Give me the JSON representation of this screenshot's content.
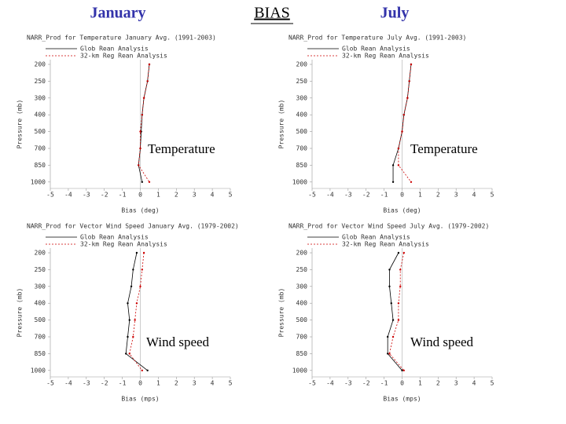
{
  "slide_titles": [
    "January",
    "BIAS",
    "July"
  ],
  "chart_data": [
    {
      "type": "line",
      "orientation": "horizontal",
      "title": "NARR_Prod for Temperature January Avg. (1991-2003)",
      "xlabel": "Bias (deg)",
      "ylabel": "Pressure (mb)",
      "annotation": "Temperature",
      "categories": [
        "200",
        "250",
        "300",
        "400",
        "500",
        "700",
        "850",
        "1000"
      ],
      "series": [
        {
          "name": "Glob Rean Analysis",
          "color": "#000000",
          "values": [
            0.5,
            0.4,
            0.2,
            0.1,
            0.05,
            0,
            -0.1,
            0.1
          ]
        },
        {
          "name": "32-km Reg Rean Analysis",
          "color": "#cc0000",
          "values": [
            0.5,
            0.4,
            0.2,
            0.1,
            0,
            0,
            -0.1,
            0.5
          ]
        }
      ],
      "xlim": [
        -5,
        5
      ],
      "xticks": [
        -5,
        -4,
        -3,
        -2,
        -1,
        0,
        1,
        2,
        3,
        4,
        5
      ]
    },
    {
      "type": "line",
      "orientation": "horizontal",
      "title": "NARR_Prod for Temperature July Avg. (1991-2003)",
      "xlabel": "Bias (deg)",
      "ylabel": "Pressure (mb)",
      "annotation": "Temperature",
      "categories": [
        "200",
        "250",
        "300",
        "400",
        "500",
        "700",
        "850",
        "1000"
      ],
      "series": [
        {
          "name": "Glob Rean Analysis",
          "color": "#000000",
          "values": [
            0.5,
            0.4,
            0.3,
            0.1,
            0,
            -0.2,
            -0.5,
            -0.5
          ]
        },
        {
          "name": "32-km Reg Rean Analysis",
          "color": "#cc0000",
          "values": [
            0.5,
            0.4,
            0.3,
            0.1,
            0,
            -0.2,
            -0.2,
            0.5
          ]
        }
      ],
      "xlim": [
        -5,
        5
      ],
      "xticks": [
        -5,
        -4,
        -3,
        -2,
        -1,
        0,
        1,
        2,
        3,
        4,
        5
      ]
    },
    {
      "type": "line",
      "orientation": "horizontal",
      "title": "NARR_Prod for Vector Wind Speed January Avg. (1979-2002)",
      "xlabel": "Bias (mps)",
      "ylabel": "Pressure (mb)",
      "annotation": "Wind speed",
      "categories": [
        "200",
        "250",
        "300",
        "400",
        "500",
        "700",
        "850",
        "1000"
      ],
      "series": [
        {
          "name": "Glob Rean Analysis",
          "color": "#000000",
          "values": [
            -0.2,
            -0.4,
            -0.5,
            -0.7,
            -0.6,
            -0.7,
            -0.8,
            0.4
          ]
        },
        {
          "name": "32-km Reg Rean Analysis",
          "color": "#cc0000",
          "values": [
            0.2,
            0.1,
            0,
            -0.2,
            -0.3,
            -0.4,
            -0.6,
            0.1
          ]
        }
      ],
      "xlim": [
        -5,
        5
      ],
      "xticks": [
        -5,
        -4,
        -3,
        -2,
        -1,
        0,
        1,
        2,
        3,
        4,
        5
      ]
    },
    {
      "type": "line",
      "orientation": "horizontal",
      "title": "NARR_Prod for Vector Wind Speed July Avg. (1979-2002)",
      "xlabel": "Bias (mps)",
      "ylabel": "Pressure (mb)",
      "annotation": "Wind speed",
      "categories": [
        "200",
        "250",
        "300",
        "400",
        "500",
        "700",
        "850",
        "1000"
      ],
      "series": [
        {
          "name": "Glob Rean Analysis",
          "color": "#000000",
          "values": [
            -0.2,
            -0.7,
            -0.7,
            -0.6,
            -0.5,
            -0.8,
            -0.8,
            0
          ]
        },
        {
          "name": "32-km Reg Rean Analysis",
          "color": "#cc0000",
          "values": [
            0.1,
            -0.1,
            -0.1,
            -0.2,
            -0.2,
            -0.5,
            -0.7,
            0.1
          ]
        }
      ],
      "xlim": [
        -5,
        5
      ],
      "xticks": [
        -5,
        -4,
        -3,
        -2,
        -1,
        0,
        1,
        2,
        3,
        4,
        5
      ]
    }
  ]
}
